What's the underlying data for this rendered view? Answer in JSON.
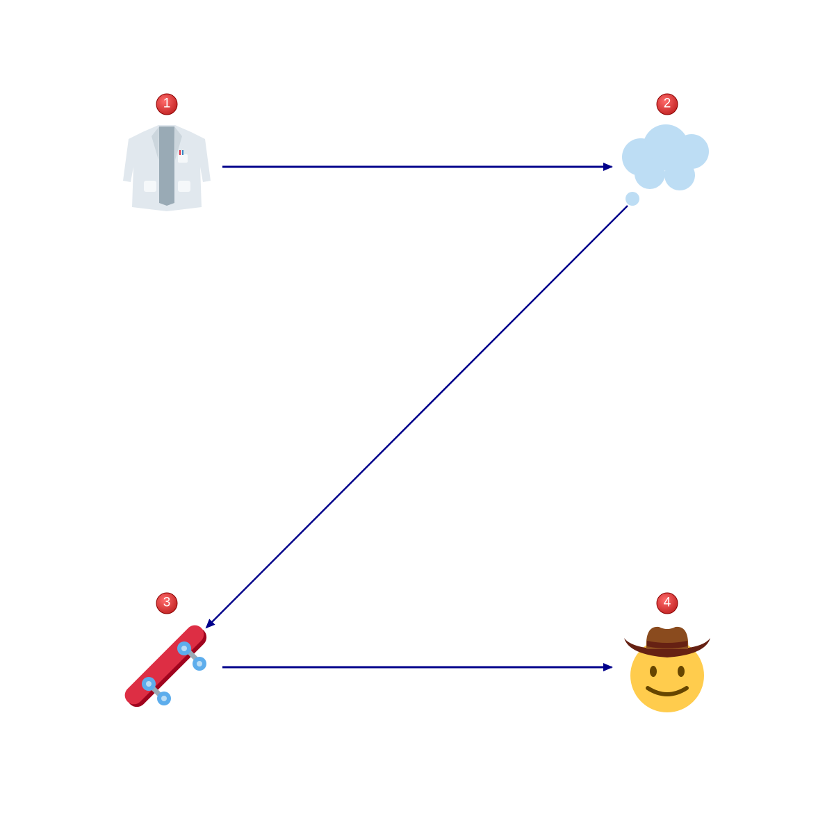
{
  "diagram": {
    "nodes": [
      {
        "id": 1,
        "badge": "1",
        "icon": "lab-coat-icon"
      },
      {
        "id": 2,
        "badge": "2",
        "icon": "thought-bubble-icon"
      },
      {
        "id": 3,
        "badge": "3",
        "icon": "skateboard-icon"
      },
      {
        "id": 4,
        "badge": "4",
        "icon": "cowboy-face-icon"
      }
    ],
    "edges": [
      {
        "from": 1,
        "to": 2
      },
      {
        "from": 2,
        "to": 3
      },
      {
        "from": 3,
        "to": 4
      }
    ],
    "colors": {
      "arrow": "#00008b",
      "badge_fill": "#e53935",
      "badge_text": "#ffffff"
    }
  }
}
